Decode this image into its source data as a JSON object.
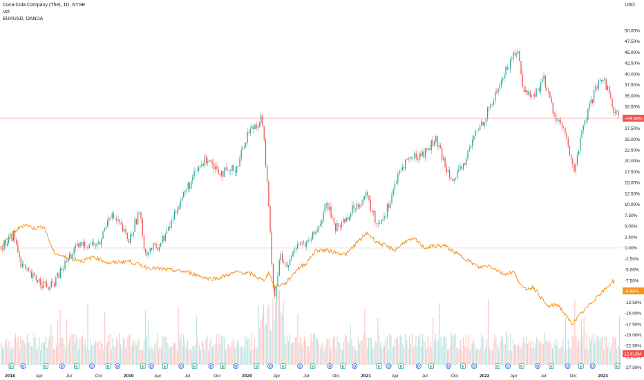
{
  "legend": {
    "main_series": "Coca-Cola Company (The), 1D, NYSE",
    "volume": "Vol",
    "compare_series": "EURUSD, OANDA"
  },
  "currency": "USD",
  "colors": {
    "up": "#26a69a",
    "down": "#ef5350",
    "compare": "#f7931a",
    "last_line": "#f7a8a8",
    "grid": "#e0e3eb"
  },
  "chart_data": {
    "type": "line",
    "x_range": [
      "2017-12-01",
      "2023-02-28"
    ],
    "y_unit": "percent",
    "ylim": [
      -27.5,
      52.5
    ],
    "y_ticks": [
      "50.00%",
      "47.50%",
      "45.00%",
      "42.50%",
      "40.00%",
      "37.50%",
      "35.00%",
      "32.50%",
      "30.00%",
      "27.50%",
      "25.00%",
      "22.50%",
      "20.00%",
      "17.50%",
      "15.00%",
      "12.50%",
      "10.00%",
      "7.50%",
      "5.00%",
      "2.50%",
      "0.00%",
      "-2.50%",
      "-5.00%",
      "-7.50%",
      "-10.00%",
      "-12.50%",
      "-15.00%",
      "-17.50%",
      "-20.00%",
      "-22.50%",
      "-25.00%",
      "-27.50%"
    ],
    "x_ticks": [
      "2018",
      "Apr",
      "Jul",
      "Oct",
      "2019",
      "Apr",
      "Jul",
      "Oct",
      "2020",
      "Apr",
      "Jul",
      "Oct",
      "2021",
      "Apr",
      "Jul",
      "Oct",
      "2022",
      "Apr",
      "Jul",
      "Oct",
      "2023"
    ],
    "x_tick_bold": [
      true,
      false,
      false,
      false,
      true,
      false,
      false,
      false,
      true,
      false,
      false,
      false,
      true,
      false,
      false,
      false,
      true,
      false,
      false,
      false,
      true
    ],
    "series": [
      {
        "name": "Coca-Cola Company (The), 1D, NYSE",
        "style": "candles",
        "last_label": "+29.84%",
        "last_value": 29.84,
        "points": [
          [
            "2017-12-01",
            0.0
          ],
          [
            "2018-01-10",
            3.0
          ],
          [
            "2018-02-05",
            -4.0
          ],
          [
            "2018-03-01",
            -6.5
          ],
          [
            "2018-04-01",
            -7.5
          ],
          [
            "2018-05-01",
            -9.5
          ],
          [
            "2018-06-01",
            -6.0
          ],
          [
            "2018-07-01",
            -2.0
          ],
          [
            "2018-08-01",
            0.5
          ],
          [
            "2018-09-01",
            1.0
          ],
          [
            "2018-10-01",
            0.5
          ],
          [
            "2018-11-01",
            8.0
          ],
          [
            "2018-12-01",
            5.5
          ],
          [
            "2019-01-01",
            1.5
          ],
          [
            "2019-02-01",
            8.5
          ],
          [
            "2019-02-20",
            -1.0
          ],
          [
            "2019-04-01",
            0.5
          ],
          [
            "2019-05-01",
            4.0
          ],
          [
            "2019-06-01",
            10.0
          ],
          [
            "2019-07-01",
            14.0
          ],
          [
            "2019-08-01",
            18.0
          ],
          [
            "2019-09-01",
            21.0
          ],
          [
            "2019-10-01",
            18.0
          ],
          [
            "2019-11-01",
            17.0
          ],
          [
            "2019-12-01",
            19.0
          ],
          [
            "2020-01-01",
            26.5
          ],
          [
            "2020-02-15",
            30.0
          ],
          [
            "2020-03-01",
            15.0
          ],
          [
            "2020-03-23",
            -12.0
          ],
          [
            "2020-04-10",
            -2.0
          ],
          [
            "2020-05-01",
            -5.0
          ],
          [
            "2020-06-01",
            1.5
          ],
          [
            "2020-07-01",
            0.5
          ],
          [
            "2020-08-01",
            4.0
          ],
          [
            "2020-09-01",
            10.0
          ],
          [
            "2020-10-01",
            4.5
          ],
          [
            "2020-11-01",
            7.0
          ],
          [
            "2020-12-01",
            10.0
          ],
          [
            "2021-01-01",
            12.0
          ],
          [
            "2021-02-01",
            5.5
          ],
          [
            "2021-03-01",
            8.0
          ],
          [
            "2021-04-01",
            15.0
          ],
          [
            "2021-05-01",
            20.0
          ],
          [
            "2021-06-01",
            21.0
          ],
          [
            "2021-07-01",
            22.0
          ],
          [
            "2021-08-01",
            25.0
          ],
          [
            "2021-09-01",
            19.0
          ],
          [
            "2021-10-01",
            15.5
          ],
          [
            "2021-11-01",
            20.0
          ],
          [
            "2021-12-01",
            26.0
          ],
          [
            "2022-01-01",
            30.0
          ],
          [
            "2022-02-01",
            35.0
          ],
          [
            "2022-03-01",
            40.0
          ],
          [
            "2022-04-10",
            46.0
          ],
          [
            "2022-05-01",
            36.0
          ],
          [
            "2022-06-01",
            35.0
          ],
          [
            "2022-07-01",
            39.0
          ],
          [
            "2022-08-01",
            31.0
          ],
          [
            "2022-09-01",
            27.0
          ],
          [
            "2022-10-01",
            17.5
          ],
          [
            "2022-11-01",
            28.0
          ],
          [
            "2022-12-01",
            35.0
          ],
          [
            "2023-01-01",
            39.5
          ],
          [
            "2023-02-01",
            32.0
          ],
          [
            "2023-02-25",
            29.84
          ]
        ]
      },
      {
        "name": "EURUSD, OANDA",
        "style": "line",
        "last_label": "-9.88%",
        "last_value": -9.88,
        "points": [
          [
            "2017-12-01",
            0.0
          ],
          [
            "2018-01-10",
            3.5
          ],
          [
            "2018-02-15",
            5.5
          ],
          [
            "2018-03-15",
            4.5
          ],
          [
            "2018-04-15",
            5.0
          ],
          [
            "2018-05-15",
            -1.0
          ],
          [
            "2018-06-15",
            -2.0
          ],
          [
            "2018-08-15",
            -3.0
          ],
          [
            "2018-09-15",
            -2.0
          ],
          [
            "2018-11-01",
            -3.5
          ],
          [
            "2019-01-01",
            -3.0
          ],
          [
            "2019-03-01",
            -4.5
          ],
          [
            "2019-05-01",
            -5.0
          ],
          [
            "2019-07-01",
            -5.5
          ],
          [
            "2019-09-01",
            -7.0
          ],
          [
            "2019-10-01",
            -7.0
          ],
          [
            "2019-12-01",
            -5.5
          ],
          [
            "2020-01-15",
            -6.0
          ],
          [
            "2020-02-20",
            -7.5
          ],
          [
            "2020-03-10",
            -5.5
          ],
          [
            "2020-03-23",
            -9.0
          ],
          [
            "2020-05-01",
            -8.0
          ],
          [
            "2020-06-01",
            -5.0
          ],
          [
            "2020-07-01",
            -3.5
          ],
          [
            "2020-08-01",
            -0.5
          ],
          [
            "2020-09-01",
            -0.5
          ],
          [
            "2020-10-01",
            -1.0
          ],
          [
            "2020-11-01",
            -1.5
          ],
          [
            "2020-12-01",
            1.0
          ],
          [
            "2021-01-05",
            3.5
          ],
          [
            "2021-02-01",
            1.5
          ],
          [
            "2021-03-31",
            -0.5
          ],
          [
            "2021-05-01",
            1.5
          ],
          [
            "2021-06-01",
            2.0
          ],
          [
            "2021-07-01",
            0.0
          ],
          [
            "2021-08-01",
            0.5
          ],
          [
            "2021-09-01",
            0.5
          ],
          [
            "2021-10-01",
            -1.0
          ],
          [
            "2021-11-15",
            -3.0
          ],
          [
            "2021-12-15",
            -4.5
          ],
          [
            "2022-01-15",
            -4.0
          ],
          [
            "2022-03-01",
            -6.0
          ],
          [
            "2022-04-01",
            -5.5
          ],
          [
            "2022-05-01",
            -9.5
          ],
          [
            "2022-06-01",
            -9.0
          ],
          [
            "2022-07-14",
            -13.5
          ],
          [
            "2022-08-15",
            -13.0
          ],
          [
            "2022-09-27",
            -17.5
          ],
          [
            "2022-10-15",
            -16.0
          ],
          [
            "2022-11-15",
            -13.5
          ],
          [
            "2022-12-15",
            -11.0
          ],
          [
            "2023-01-15",
            -9.0
          ],
          [
            "2023-02-01",
            -7.5
          ],
          [
            "2023-02-25",
            -9.88
          ]
        ]
      }
    ],
    "volume": {
      "last_label": "12.618M",
      "last_value": 12.618
    },
    "events": [
      [
        "2018-01-05",
        "E"
      ],
      [
        "2018-02-10",
        "D"
      ],
      [
        "2018-04-20",
        "E"
      ],
      [
        "2018-06-10",
        "D"
      ],
      [
        "2018-07-25",
        "E"
      ],
      [
        "2018-09-10",
        "D"
      ],
      [
        "2018-10-30",
        "E"
      ],
      [
        "2018-11-28",
        "D"
      ],
      [
        "2019-02-14",
        "E"
      ],
      [
        "2019-03-12",
        "D"
      ],
      [
        "2019-04-23",
        "E"
      ],
      [
        "2019-06-12",
        "D"
      ],
      [
        "2019-07-23",
        "E"
      ],
      [
        "2019-09-12",
        "D"
      ],
      [
        "2019-10-18",
        "E"
      ],
      [
        "2019-11-27",
        "D"
      ],
      [
        "2020-01-30",
        "E"
      ],
      [
        "2020-03-12",
        "D"
      ],
      [
        "2020-04-21",
        "E"
      ],
      [
        "2020-06-12",
        "D"
      ],
      [
        "2020-07-21",
        "E"
      ],
      [
        "2020-09-12",
        "D"
      ],
      [
        "2020-10-22",
        "E"
      ],
      [
        "2020-11-27",
        "D"
      ],
      [
        "2021-02-10",
        "E"
      ],
      [
        "2021-03-12",
        "D"
      ],
      [
        "2021-04-19",
        "E"
      ],
      [
        "2021-06-12",
        "D"
      ],
      [
        "2021-07-21",
        "E"
      ],
      [
        "2021-09-12",
        "D"
      ],
      [
        "2021-10-27",
        "E"
      ],
      [
        "2021-11-30",
        "D"
      ],
      [
        "2022-02-10",
        "E"
      ],
      [
        "2022-03-14",
        "D"
      ],
      [
        "2022-04-25",
        "E"
      ],
      [
        "2022-06-14",
        "D"
      ],
      [
        "2022-07-26",
        "E"
      ],
      [
        "2022-09-14",
        "D"
      ],
      [
        "2022-10-25",
        "E"
      ],
      [
        "2022-11-30",
        "D"
      ],
      [
        "2023-02-14",
        "E"
      ]
    ]
  }
}
